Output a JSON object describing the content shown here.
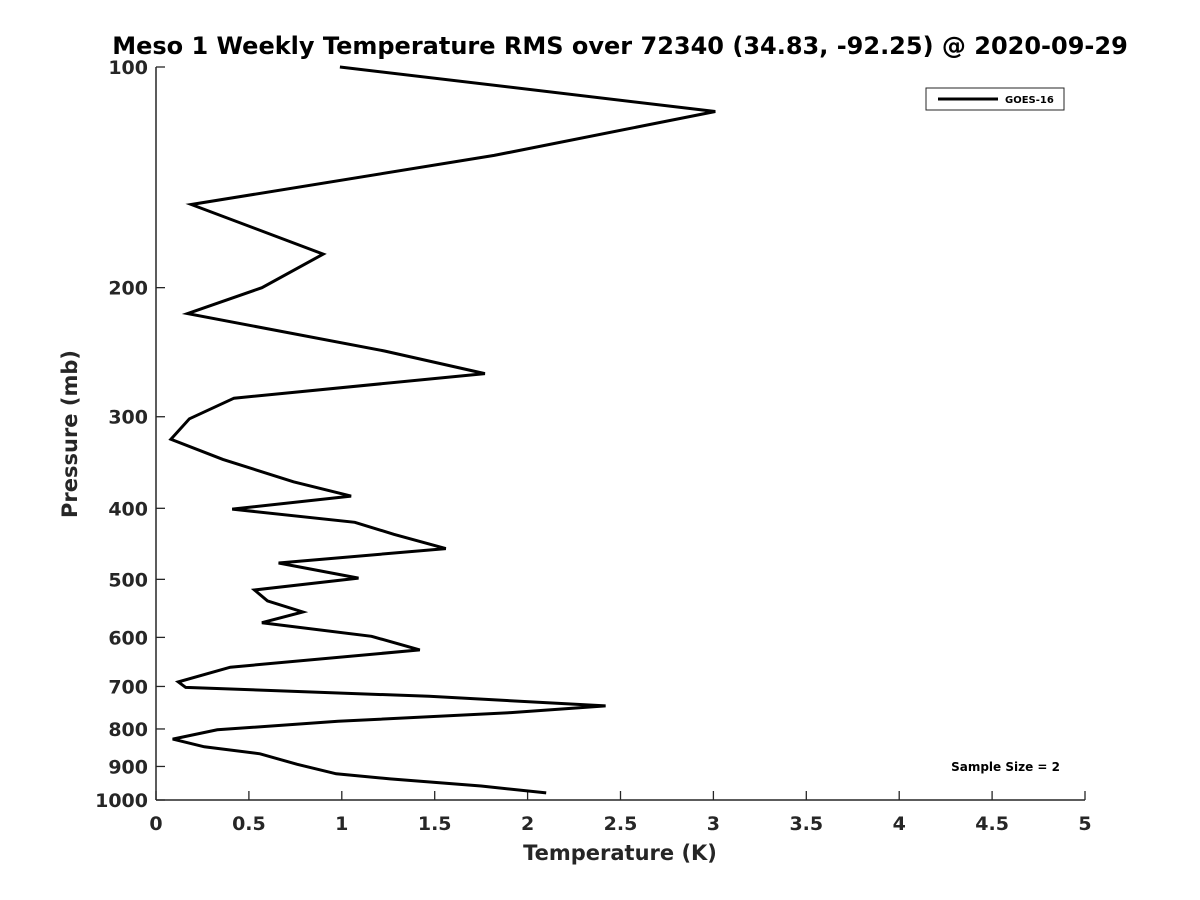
{
  "chart_data": {
    "type": "line",
    "title": "Meso 1 Weekly Temperature RMS over 72340 (34.83, -92.25) @ 2020-09-29",
    "xlabel": "Temperature (K)",
    "ylabel": "Pressure (mb)",
    "xlim": [
      0,
      5
    ],
    "ylim": [
      1000,
      100
    ],
    "y_scale": "log",
    "x_ticks": [
      "0",
      "0.5",
      "1",
      "1.5",
      "2",
      "2.5",
      "3",
      "3.5",
      "4",
      "4.5",
      "5"
    ],
    "y_ticks": [
      "100",
      "200",
      "300",
      "400",
      "500",
      "600",
      "700",
      "800",
      "900",
      "1000"
    ],
    "grid": false,
    "legend_position": "top-right",
    "annotation": "Sample Size = 2",
    "series": [
      {
        "name": "GOES-16",
        "color": "#000000",
        "points": [
          [
            0.99,
            100
          ],
          [
            3.01,
            115
          ],
          [
            1.82,
            132
          ],
          [
            0.19,
            154
          ],
          [
            0.9,
            180
          ],
          [
            0.57,
            200
          ],
          [
            0.17,
            217
          ],
          [
            1.23,
            244
          ],
          [
            1.77,
            262
          ],
          [
            0.42,
            283
          ],
          [
            0.18,
            302
          ],
          [
            0.08,
            322
          ],
          [
            0.36,
            343
          ],
          [
            0.74,
            368
          ],
          [
            1.05,
            385
          ],
          [
            0.41,
            401
          ],
          [
            1.07,
            418
          ],
          [
            1.28,
            434
          ],
          [
            1.56,
            454
          ],
          [
            0.66,
            475
          ],
          [
            1.09,
            498
          ],
          [
            0.53,
            517
          ],
          [
            0.6,
            535
          ],
          [
            0.79,
            554
          ],
          [
            0.57,
            573
          ],
          [
            1.16,
            598
          ],
          [
            1.42,
            624
          ],
          [
            0.4,
            659
          ],
          [
            0.12,
            690
          ],
          [
            0.16,
            702
          ],
          [
            1.47,
            722
          ],
          [
            2.42,
            744
          ],
          [
            1.91,
            760
          ],
          [
            0.98,
            781
          ],
          [
            0.33,
            802
          ],
          [
            0.09,
            826
          ],
          [
            0.26,
            846
          ],
          [
            0.56,
            865
          ],
          [
            0.76,
            894
          ],
          [
            0.97,
            921
          ],
          [
            1.26,
            936
          ],
          [
            1.75,
            957
          ],
          [
            2.1,
            978
          ]
        ]
      }
    ]
  }
}
